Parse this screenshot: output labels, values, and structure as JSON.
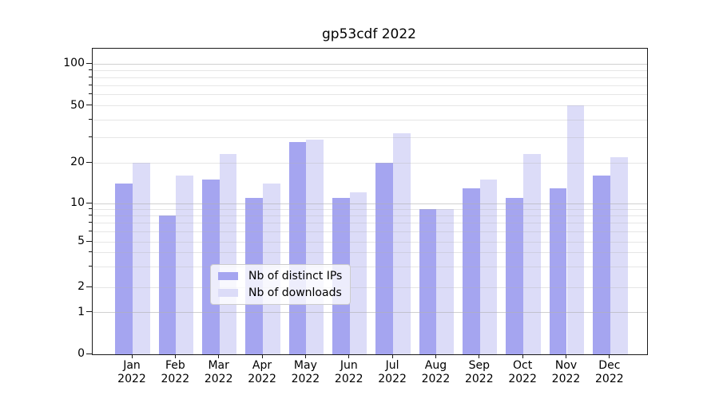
{
  "title": "gp53cdf 2022",
  "chart_data": {
    "type": "bar",
    "categories": [
      "Jan 2022",
      "Feb 2022",
      "Mar 2022",
      "Apr 2022",
      "May 2022",
      "Jun 2022",
      "Jul 2022",
      "Aug 2022",
      "Sep 2022",
      "Oct 2022",
      "Nov 2022",
      "Dec 2022"
    ],
    "series": [
      {
        "name": "Nb of distinct IPs",
        "color": "#a5a5f0",
        "values": [
          14,
          8,
          15,
          11,
          28,
          11,
          20,
          9,
          13,
          11,
          13,
          16
        ]
      },
      {
        "name": "Nb of downloads",
        "color": "#dcdcf8",
        "values": [
          20,
          16,
          23,
          14,
          29,
          12,
          32,
          9,
          15,
          23,
          50,
          22
        ]
      }
    ],
    "title": "gp53cdf 2022",
    "xlabel": "",
    "ylabel": "",
    "yscale": "symlog",
    "ylim": [
      0,
      130
    ],
    "grid": "both-horizontal",
    "legend_position": "lower center"
  },
  "y_axis": {
    "tick_labels": [
      "100",
      "50",
      "20",
      "10",
      "5",
      "2",
      "1",
      "0"
    ],
    "tick_values": [
      100,
      50,
      20,
      10,
      5,
      2,
      1,
      0
    ],
    "major_gridline_values": [
      1,
      10,
      100
    ],
    "minor_gridline_values": [
      2,
      3,
      4,
      5,
      6,
      7,
      8,
      9,
      20,
      30,
      40,
      50,
      60,
      70,
      80,
      90
    ]
  },
  "x_axis": {
    "tick_labels": [
      {
        "month": "Jan",
        "year": "2022"
      },
      {
        "month": "Feb",
        "year": "2022"
      },
      {
        "month": "Mar",
        "year": "2022"
      },
      {
        "month": "Apr",
        "year": "2022"
      },
      {
        "month": "May",
        "year": "2022"
      },
      {
        "month": "Jun",
        "year": "2022"
      },
      {
        "month": "Jul",
        "year": "2022"
      },
      {
        "month": "Aug",
        "year": "2022"
      },
      {
        "month": "Sep",
        "year": "2022"
      },
      {
        "month": "Oct",
        "year": "2022"
      },
      {
        "month": "Nov",
        "year": "2022"
      },
      {
        "month": "Dec",
        "year": "2022"
      }
    ]
  },
  "legend": {
    "items": [
      {
        "label": "Nb of distinct IPs",
        "color": "#a5a5f0"
      },
      {
        "label": "Nb of downloads",
        "color": "#dcdcf8"
      }
    ]
  },
  "colors": {
    "distinct_ips": "#a5a5f0",
    "downloads": "#dcdcf8",
    "spine": "#1a1a1a",
    "gridline": "#b0b0b0"
  }
}
